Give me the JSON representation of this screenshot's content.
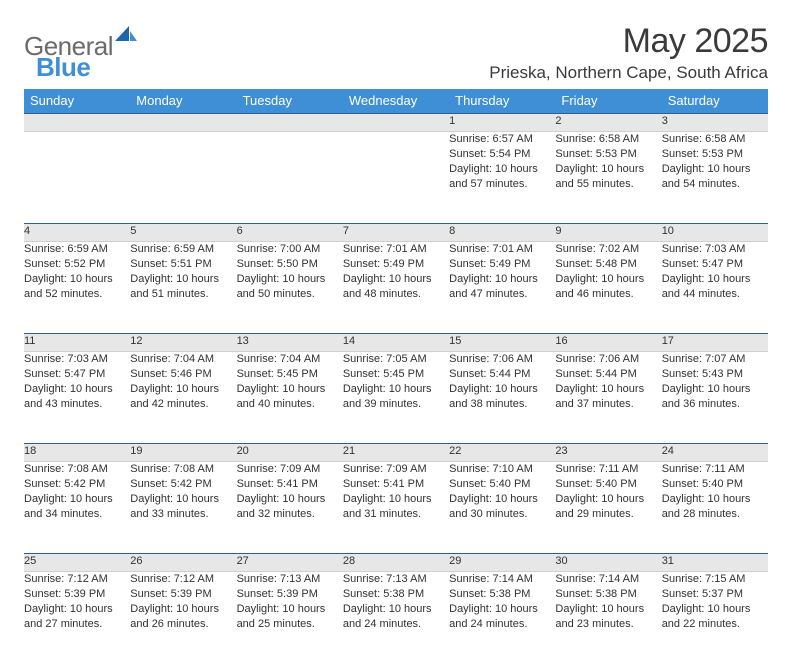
{
  "logo": {
    "word1": "General",
    "word2": "Blue"
  },
  "title": "May 2025",
  "location": "Prieska, Northern Cape, South Africa",
  "colors": {
    "headerBg": "#3f8fd6",
    "headerText": "#ffffff",
    "dayStripBg": "#e7e7e7",
    "dayStripBorderTop": "#2f5f8f",
    "bodyText": "#323232",
    "logoGray": "#6b6b6b",
    "logoBlue": "#3f8fd6"
  },
  "weekdays": [
    "Sunday",
    "Monday",
    "Tuesday",
    "Wednesday",
    "Thursday",
    "Friday",
    "Saturday"
  ],
  "weeks": [
    [
      null,
      null,
      null,
      null,
      {
        "n": "1",
        "sr": "6:57 AM",
        "ss": "5:54 PM",
        "dl": "10 hours and 57 minutes."
      },
      {
        "n": "2",
        "sr": "6:58 AM",
        "ss": "5:53 PM",
        "dl": "10 hours and 55 minutes."
      },
      {
        "n": "3",
        "sr": "6:58 AM",
        "ss": "5:53 PM",
        "dl": "10 hours and 54 minutes."
      }
    ],
    [
      {
        "n": "4",
        "sr": "6:59 AM",
        "ss": "5:52 PM",
        "dl": "10 hours and 52 minutes."
      },
      {
        "n": "5",
        "sr": "6:59 AM",
        "ss": "5:51 PM",
        "dl": "10 hours and 51 minutes."
      },
      {
        "n": "6",
        "sr": "7:00 AM",
        "ss": "5:50 PM",
        "dl": "10 hours and 50 minutes."
      },
      {
        "n": "7",
        "sr": "7:01 AM",
        "ss": "5:49 PM",
        "dl": "10 hours and 48 minutes."
      },
      {
        "n": "8",
        "sr": "7:01 AM",
        "ss": "5:49 PM",
        "dl": "10 hours and 47 minutes."
      },
      {
        "n": "9",
        "sr": "7:02 AM",
        "ss": "5:48 PM",
        "dl": "10 hours and 46 minutes."
      },
      {
        "n": "10",
        "sr": "7:03 AM",
        "ss": "5:47 PM",
        "dl": "10 hours and 44 minutes."
      }
    ],
    [
      {
        "n": "11",
        "sr": "7:03 AM",
        "ss": "5:47 PM",
        "dl": "10 hours and 43 minutes."
      },
      {
        "n": "12",
        "sr": "7:04 AM",
        "ss": "5:46 PM",
        "dl": "10 hours and 42 minutes."
      },
      {
        "n": "13",
        "sr": "7:04 AM",
        "ss": "5:45 PM",
        "dl": "10 hours and 40 minutes."
      },
      {
        "n": "14",
        "sr": "7:05 AM",
        "ss": "5:45 PM",
        "dl": "10 hours and 39 minutes."
      },
      {
        "n": "15",
        "sr": "7:06 AM",
        "ss": "5:44 PM",
        "dl": "10 hours and 38 minutes."
      },
      {
        "n": "16",
        "sr": "7:06 AM",
        "ss": "5:44 PM",
        "dl": "10 hours and 37 minutes."
      },
      {
        "n": "17",
        "sr": "7:07 AM",
        "ss": "5:43 PM",
        "dl": "10 hours and 36 minutes."
      }
    ],
    [
      {
        "n": "18",
        "sr": "7:08 AM",
        "ss": "5:42 PM",
        "dl": "10 hours and 34 minutes."
      },
      {
        "n": "19",
        "sr": "7:08 AM",
        "ss": "5:42 PM",
        "dl": "10 hours and 33 minutes."
      },
      {
        "n": "20",
        "sr": "7:09 AM",
        "ss": "5:41 PM",
        "dl": "10 hours and 32 minutes."
      },
      {
        "n": "21",
        "sr": "7:09 AM",
        "ss": "5:41 PM",
        "dl": "10 hours and 31 minutes."
      },
      {
        "n": "22",
        "sr": "7:10 AM",
        "ss": "5:40 PM",
        "dl": "10 hours and 30 minutes."
      },
      {
        "n": "23",
        "sr": "7:11 AM",
        "ss": "5:40 PM",
        "dl": "10 hours and 29 minutes."
      },
      {
        "n": "24",
        "sr": "7:11 AM",
        "ss": "5:40 PM",
        "dl": "10 hours and 28 minutes."
      }
    ],
    [
      {
        "n": "25",
        "sr": "7:12 AM",
        "ss": "5:39 PM",
        "dl": "10 hours and 27 minutes."
      },
      {
        "n": "26",
        "sr": "7:12 AM",
        "ss": "5:39 PM",
        "dl": "10 hours and 26 minutes."
      },
      {
        "n": "27",
        "sr": "7:13 AM",
        "ss": "5:39 PM",
        "dl": "10 hours and 25 minutes."
      },
      {
        "n": "28",
        "sr": "7:13 AM",
        "ss": "5:38 PM",
        "dl": "10 hours and 24 minutes."
      },
      {
        "n": "29",
        "sr": "7:14 AM",
        "ss": "5:38 PM",
        "dl": "10 hours and 24 minutes."
      },
      {
        "n": "30",
        "sr": "7:14 AM",
        "ss": "5:38 PM",
        "dl": "10 hours and 23 minutes."
      },
      {
        "n": "31",
        "sr": "7:15 AM",
        "ss": "5:37 PM",
        "dl": "10 hours and 22 minutes."
      }
    ]
  ],
  "labels": {
    "sunrise": "Sunrise: ",
    "sunset": "Sunset: ",
    "daylight": "Daylight: "
  }
}
